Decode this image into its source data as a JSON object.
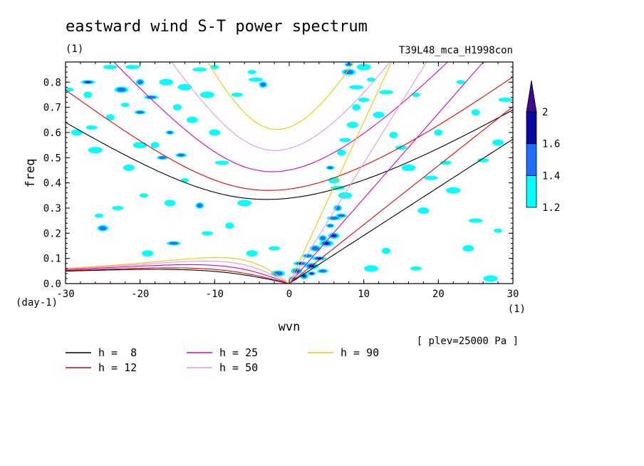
{
  "chart_data": {
    "type": "contour",
    "title": "eastward wind S-T power spectrum",
    "title_unit": "(1)",
    "experiment": "T39L48_mca_H1998con",
    "xlabel": "wvn",
    "x_unit": "(1)",
    "ylabel": "freq",
    "y_unit": "(day-1)",
    "plev_note": "[ plev=25000 Pa ]",
    "xlim": [
      -30,
      30
    ],
    "ylim": [
      0,
      0.88
    ],
    "x_ticks": [
      -30,
      -20,
      -10,
      0,
      10,
      20,
      30
    ],
    "x_tick_labels": [
      "-30",
      "-20",
      "-10",
      "0",
      "10",
      "20",
      "30"
    ],
    "y_ticks": [
      0,
      0.1,
      0.2,
      0.3,
      0.4,
      0.5,
      0.6,
      0.7,
      0.8
    ],
    "y_tick_labels": [
      "0.0",
      "0.1",
      "0.2",
      "0.3",
      "0.4",
      "0.5",
      "0.6",
      "0.7",
      "0.8"
    ],
    "colorbar": {
      "levels": [
        1.2,
        1.4,
        1.6,
        2
      ],
      "labels": [
        "1.2",
        "1.4",
        "1.6",
        "2"
      ],
      "colors": [
        "#00ffff",
        "#1e6eff",
        "#0a0aa0",
        "#3c0a8c"
      ]
    },
    "dispersion_curves": [
      {
        "label": "h =  8",
        "h": 8,
        "color": "#000000"
      },
      {
        "label": "h = 12",
        "h": 12,
        "color": "#e60000"
      },
      {
        "label": "h = 25",
        "h": 25,
        "color": "#d200c8"
      },
      {
        "label": "h = 50",
        "h": 50,
        "color": "#e696e6"
      },
      {
        "label": "h = 90",
        "h": 90,
        "color": "#f0c800"
      }
    ],
    "power_blobs": [
      [
        -29.5,
        0.77,
        1
      ],
      [
        -28.5,
        0.6,
        1
      ],
      [
        -27,
        0.8,
        3
      ],
      [
        -27,
        0.75,
        1
      ],
      [
        -26.5,
        0.62,
        1
      ],
      [
        -26,
        0.53,
        1
      ],
      [
        -25.5,
        0.27,
        1
      ],
      [
        -25,
        0.22,
        2
      ],
      [
        -24,
        0.86,
        1
      ],
      [
        -24,
        0.66,
        1
      ],
      [
        -23,
        0.3,
        1
      ],
      [
        -22.5,
        0.77,
        2
      ],
      [
        -22,
        0.71,
        1
      ],
      [
        -21.5,
        0.46,
        1
      ],
      [
        -21,
        0.86,
        1
      ],
      [
        -20,
        0.8,
        2
      ],
      [
        -20,
        0.68,
        2
      ],
      [
        -20,
        0.55,
        1
      ],
      [
        -19.5,
        0.35,
        1
      ],
      [
        -19,
        0.12,
        1
      ],
      [
        -18.5,
        0.74,
        2
      ],
      [
        -18,
        0.55,
        1
      ],
      [
        -17,
        0.5,
        2
      ],
      [
        -16.5,
        0.8,
        1
      ],
      [
        -16,
        0.6,
        2
      ],
      [
        -16,
        0.32,
        1
      ],
      [
        -15.5,
        0.16,
        2
      ],
      [
        -15,
        0.7,
        1
      ],
      [
        -14.5,
        0.51,
        2
      ],
      [
        -14,
        0.78,
        1
      ],
      [
        -14,
        0.41,
        1
      ],
      [
        -13,
        0.65,
        1
      ],
      [
        -12,
        0.85,
        1
      ],
      [
        -12,
        0.31,
        2
      ],
      [
        -11,
        0.2,
        1
      ],
      [
        -11,
        0.75,
        1
      ],
      [
        -10,
        0.86,
        1
      ],
      [
        -10,
        0.6,
        1
      ],
      [
        -9,
        0.48,
        1
      ],
      [
        -8,
        0.23,
        1
      ],
      [
        -7,
        0.75,
        1
      ],
      [
        -6,
        0.32,
        1
      ],
      [
        -5,
        0.84,
        1
      ],
      [
        -5,
        0.12,
        1
      ],
      [
        -4.5,
        0.81,
        1
      ],
      [
        -3.5,
        0.79,
        2
      ],
      [
        -2,
        0.14,
        1
      ],
      [
        -1.5,
        0.04,
        2
      ],
      [
        0.5,
        0.02,
        3
      ],
      [
        1,
        0.05,
        3
      ],
      [
        1.5,
        0.08,
        3
      ],
      [
        2,
        0.03,
        3
      ],
      [
        2.5,
        0.11,
        2
      ],
      [
        3,
        0.07,
        3
      ],
      [
        3,
        0.04,
        3
      ],
      [
        3.5,
        0.14,
        2
      ],
      [
        4,
        0.1,
        3
      ],
      [
        4.5,
        0.18,
        2
      ],
      [
        4.5,
        0.05,
        2
      ],
      [
        5,
        0.16,
        3
      ],
      [
        5.5,
        0.23,
        2
      ],
      [
        6,
        0.19,
        3
      ],
      [
        6,
        0.26,
        2
      ],
      [
        6.5,
        0.3,
        2
      ],
      [
        7,
        0.27,
        2
      ],
      [
        7.5,
        0.35,
        1
      ],
      [
        5.5,
        0.46,
        2
      ],
      [
        6,
        0.41,
        1
      ],
      [
        6.5,
        0.38,
        1
      ],
      [
        7,
        0.52,
        1
      ],
      [
        7.5,
        0.57,
        1
      ],
      [
        8,
        0.84,
        2
      ],
      [
        8,
        0.87,
        2
      ],
      [
        8.5,
        0.63,
        1
      ],
      [
        9,
        0.78,
        1
      ],
      [
        9,
        0.7,
        1
      ],
      [
        10,
        0.73,
        1
      ],
      [
        10,
        0.86,
        1
      ],
      [
        11,
        0.81,
        1
      ],
      [
        12,
        0.67,
        1
      ],
      [
        13,
        0.76,
        1
      ],
      [
        14,
        0.59,
        1
      ],
      [
        15,
        0.54,
        1
      ],
      [
        16,
        0.46,
        1
      ],
      [
        17,
        0.75,
        1
      ],
      [
        18,
        0.29,
        1
      ],
      [
        19,
        0.42,
        1
      ],
      [
        20,
        0.6,
        1
      ],
      [
        21,
        0.48,
        1
      ],
      [
        22,
        0.37,
        1
      ],
      [
        23,
        0.8,
        1
      ],
      [
        24,
        0.14,
        1
      ],
      [
        25,
        0.25,
        1
      ],
      [
        25,
        0.68,
        1
      ],
      [
        26,
        0.49,
        1
      ],
      [
        27,
        0.02,
        1
      ],
      [
        28,
        0.21,
        1
      ],
      [
        28,
        0.56,
        1
      ],
      [
        29,
        0.73,
        1
      ],
      [
        13,
        0.13,
        1
      ],
      [
        17,
        0.06,
        1
      ],
      [
        11,
        0.06,
        1
      ]
    ]
  },
  "legend": {
    "items": [
      {
        "label": "h =  8",
        "color": "#000000"
      },
      {
        "label": "h = 12",
        "color": "#e60000"
      },
      {
        "label": "h = 25",
        "color": "#d200c8"
      },
      {
        "label": "h = 50",
        "color": "#e696e6"
      },
      {
        "label": "h = 90",
        "color": "#f0c800"
      }
    ]
  }
}
